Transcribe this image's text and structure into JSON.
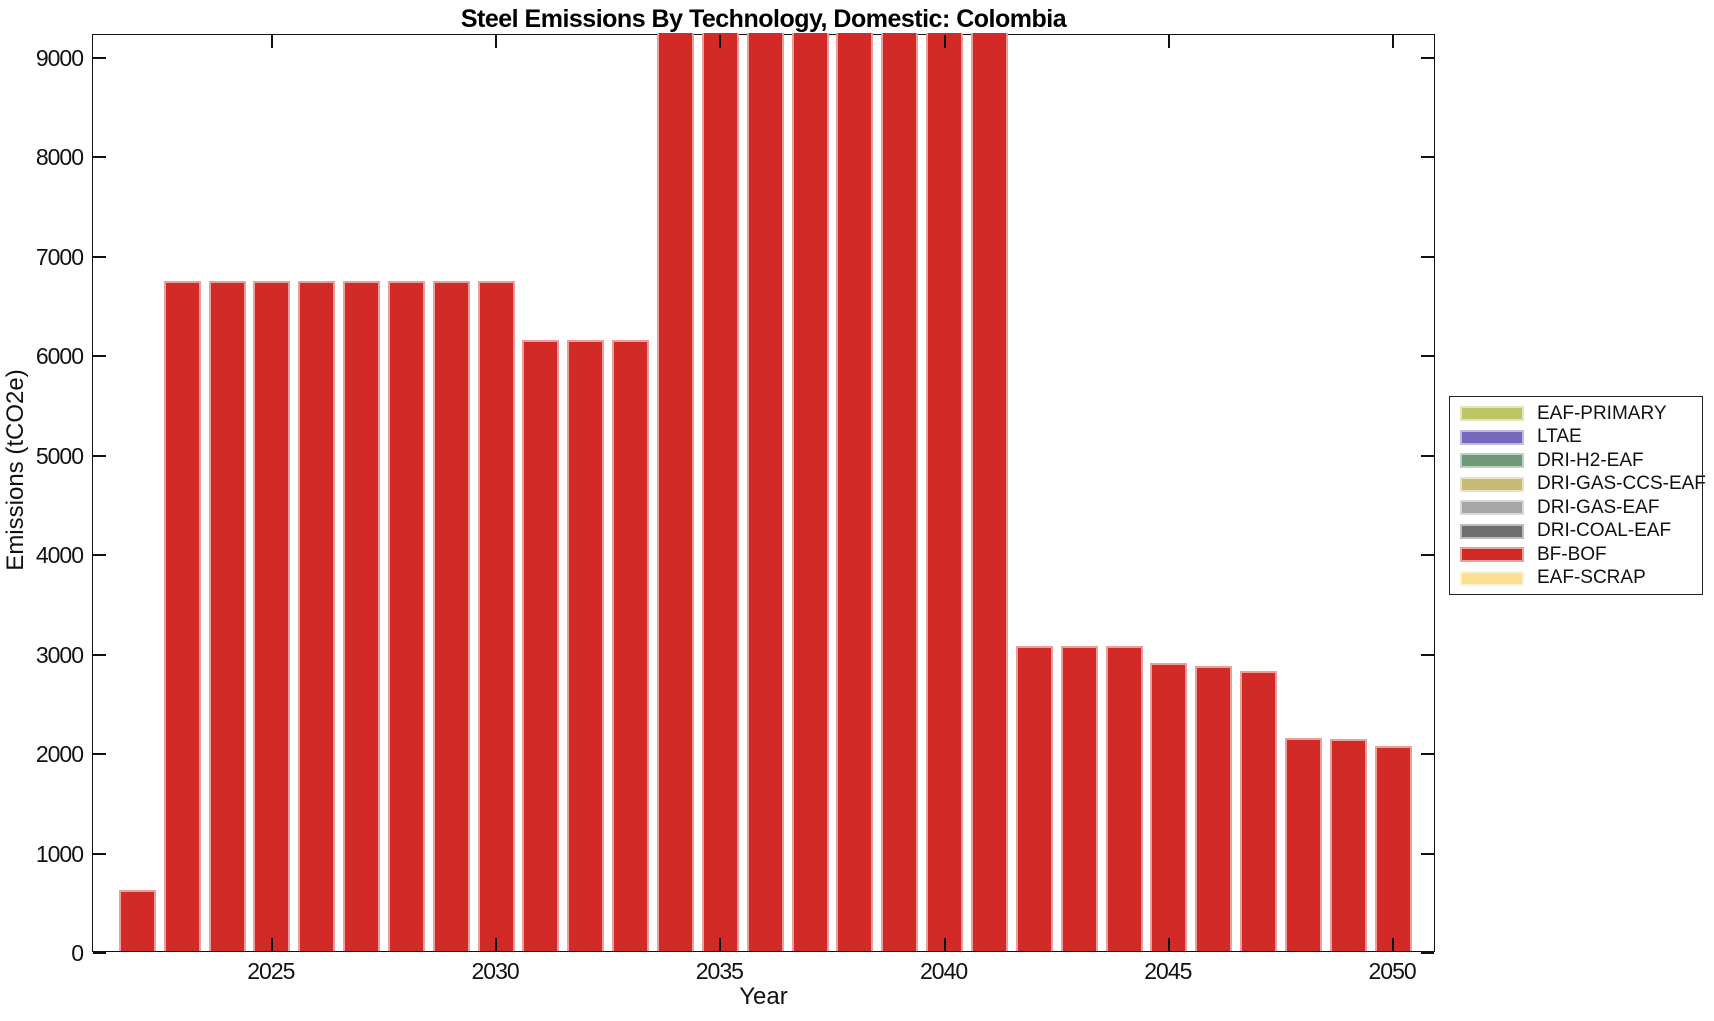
{
  "title": "Steel Emissions By Technology, Domestic: Colombia",
  "axes": {
    "xlabel": "Year",
    "ylabel": "Emissions (tCO2e)"
  },
  "colors": {
    "bar": "#d22b27",
    "axis": "#111111",
    "background": "#ffffff"
  },
  "chart_data": {
    "type": "bar",
    "title": "Steel Emissions By Technology, Domestic: Colombia",
    "xlabel": "Year",
    "ylabel": "Emissions (tCO2e)",
    "grid": false,
    "ylim": [
      0,
      9230
    ],
    "yticks": [
      0,
      1000,
      2000,
      3000,
      4000,
      5000,
      6000,
      7000,
      8000,
      9000
    ],
    "xticks": [
      2025,
      2030,
      2035,
      2040,
      2045,
      2050
    ],
    "x": [
      2022,
      2023,
      2024,
      2025,
      2026,
      2027,
      2028,
      2029,
      2030,
      2031,
      2032,
      2033,
      2034,
      2035,
      2036,
      2037,
      2038,
      2039,
      2040,
      2041,
      2042,
      2043,
      2044,
      2045,
      2046,
      2047,
      2048,
      2049,
      2050
    ],
    "series": [
      {
        "name": "BF-BOF",
        "color": "#d22b27",
        "values": [
          610,
          6740,
          6740,
          6740,
          6740,
          6740,
          6740,
          6740,
          6740,
          6140,
          6140,
          6140,
          9230,
          9230,
          9230,
          9230,
          9230,
          9230,
          9230,
          9230,
          3065,
          3065,
          3065,
          2895,
          2865,
          2820,
          2145,
          2130,
          2060
        ]
      }
    ],
    "clipped_years": [
      2034,
      2035,
      2036,
      2037,
      2038,
      2039,
      2040,
      2041
    ],
    "legend": {
      "position": "outside-right",
      "entries": [
        {
          "label": "EAF-PRIMARY",
          "color": "#bdc566"
        },
        {
          "label": "LTAE",
          "color": "#7569bd"
        },
        {
          "label": "DRI-H2-EAF",
          "color": "#6f9878"
        },
        {
          "label": "DRI-GAS-CCS-EAF",
          "color": "#c6bc75"
        },
        {
          "label": "DRI-GAS-EAF",
          "color": "#a6a6a6"
        },
        {
          "label": "DRI-COAL-EAF",
          "color": "#6e6e6e"
        },
        {
          "label": "BF-BOF",
          "color": "#d22b27"
        },
        {
          "label": "EAF-SCRAP",
          "color": "#fbdf92"
        }
      ]
    }
  }
}
